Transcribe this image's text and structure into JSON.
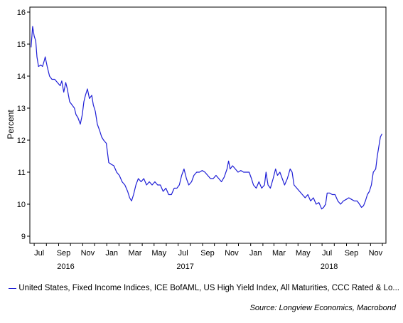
{
  "chart_data": {
    "type": "line",
    "ylabel": "Percent",
    "ylim": [
      9,
      16
    ],
    "yticks": [
      9,
      10,
      11,
      12,
      13,
      14,
      15,
      16
    ],
    "x_tick_labels": [
      "Jul",
      "Sep",
      "Nov",
      "Jan",
      "Mar",
      "May",
      "Jul",
      "Sep",
      "Nov",
      "Jan",
      "Mar",
      "May",
      "Jul",
      "Sep",
      "Nov"
    ],
    "x_year_labels": [
      "2016",
      "2017",
      "2018"
    ],
    "xlim": [
      "2016-06-20",
      "2018-12-10"
    ],
    "grid": false,
    "legend_position": "bottom",
    "series": [
      {
        "name": "United States, Fixed Income Indices, ICE BofAML, US High Yield Index, All Maturities, CCC Rated & Lo...",
        "color": "#1f1fd6",
        "points": [
          [
            "2016-06-23",
            14.9
          ],
          [
            "2016-06-27",
            15.55
          ],
          [
            "2016-07-01",
            15.25
          ],
          [
            "2016-07-05",
            15.1
          ],
          [
            "2016-07-08",
            14.6
          ],
          [
            "2016-07-12",
            14.3
          ],
          [
            "2016-07-18",
            14.35
          ],
          [
            "2016-07-22",
            14.3
          ],
          [
            "2016-07-27",
            14.5
          ],
          [
            "2016-07-29",
            14.6
          ],
          [
            "2016-08-03",
            14.3
          ],
          [
            "2016-08-09",
            14.0
          ],
          [
            "2016-08-15",
            13.9
          ],
          [
            "2016-08-22",
            13.9
          ],
          [
            "2016-08-29",
            13.8
          ],
          [
            "2016-09-05",
            13.7
          ],
          [
            "2016-09-09",
            13.85
          ],
          [
            "2016-09-14",
            13.5
          ],
          [
            "2016-09-19",
            13.8
          ],
          [
            "2016-09-23",
            13.6
          ],
          [
            "2016-09-29",
            13.2
          ],
          [
            "2016-10-05",
            13.1
          ],
          [
            "2016-10-11",
            13.0
          ],
          [
            "2016-10-15",
            12.8
          ],
          [
            "2016-10-20",
            12.7
          ],
          [
            "2016-10-26",
            12.5
          ],
          [
            "2016-10-31",
            12.8
          ],
          [
            "2016-11-04",
            13.2
          ],
          [
            "2016-11-08",
            13.4
          ],
          [
            "2016-11-13",
            13.6
          ],
          [
            "2016-11-18",
            13.3
          ],
          [
            "2016-11-24",
            13.4
          ],
          [
            "2016-11-28",
            13.1
          ],
          [
            "2016-12-03",
            12.9
          ],
          [
            "2016-12-08",
            12.5
          ],
          [
            "2016-12-14",
            12.3
          ],
          [
            "2016-12-19",
            12.1
          ],
          [
            "2016-12-24",
            12.0
          ],
          [
            "2016-12-31",
            11.9
          ],
          [
            "2017-01-03",
            11.6
          ],
          [
            "2017-01-06",
            11.3
          ],
          [
            "2017-01-12",
            11.25
          ],
          [
            "2017-01-19",
            11.2
          ],
          [
            "2017-01-26",
            11.0
          ],
          [
            "2017-02-02",
            10.9
          ],
          [
            "2017-02-09",
            10.7
          ],
          [
            "2017-02-16",
            10.6
          ],
          [
            "2017-02-23",
            10.4
          ],
          [
            "2017-02-28",
            10.2
          ],
          [
            "2017-03-05",
            10.1
          ],
          [
            "2017-03-10",
            10.3
          ],
          [
            "2017-03-16",
            10.6
          ],
          [
            "2017-03-22",
            10.8
          ],
          [
            "2017-03-29",
            10.7
          ],
          [
            "2017-04-05",
            10.8
          ],
          [
            "2017-04-12",
            10.6
          ],
          [
            "2017-04-19",
            10.7
          ],
          [
            "2017-04-26",
            10.6
          ],
          [
            "2017-05-03",
            10.7
          ],
          [
            "2017-05-10",
            10.6
          ],
          [
            "2017-05-17",
            10.6
          ],
          [
            "2017-05-24",
            10.4
          ],
          [
            "2017-05-31",
            10.5
          ],
          [
            "2017-06-07",
            10.3
          ],
          [
            "2017-06-14",
            10.3
          ],
          [
            "2017-06-21",
            10.5
          ],
          [
            "2017-06-28",
            10.5
          ],
          [
            "2017-07-04",
            10.6
          ],
          [
            "2017-07-10",
            10.9
          ],
          [
            "2017-07-16",
            11.1
          ],
          [
            "2017-07-22",
            10.8
          ],
          [
            "2017-07-28",
            10.6
          ],
          [
            "2017-08-04",
            10.7
          ],
          [
            "2017-08-10",
            10.9
          ],
          [
            "2017-08-17",
            11.0
          ],
          [
            "2017-08-24",
            11.0
          ],
          [
            "2017-08-31",
            11.05
          ],
          [
            "2017-09-07",
            11.0
          ],
          [
            "2017-09-14",
            10.9
          ],
          [
            "2017-09-21",
            10.8
          ],
          [
            "2017-09-28",
            10.8
          ],
          [
            "2017-10-05",
            10.9
          ],
          [
            "2017-10-12",
            10.8
          ],
          [
            "2017-10-19",
            10.7
          ],
          [
            "2017-10-26",
            10.85
          ],
          [
            "2017-11-02",
            11.1
          ],
          [
            "2017-11-06",
            11.35
          ],
          [
            "2017-11-10",
            11.1
          ],
          [
            "2017-11-16",
            11.2
          ],
          [
            "2017-11-23",
            11.1
          ],
          [
            "2017-11-30",
            11.0
          ],
          [
            "2017-12-07",
            11.05
          ],
          [
            "2017-12-14",
            11.0
          ],
          [
            "2017-12-21",
            11.0
          ],
          [
            "2017-12-28",
            11.0
          ],
          [
            "2018-01-03",
            10.8
          ],
          [
            "2018-01-08",
            10.6
          ],
          [
            "2018-01-15",
            10.5
          ],
          [
            "2018-01-22",
            10.7
          ],
          [
            "2018-01-29",
            10.5
          ],
          [
            "2018-02-05",
            10.6
          ],
          [
            "2018-02-09",
            11.0
          ],
          [
            "2018-02-14",
            10.6
          ],
          [
            "2018-02-20",
            10.5
          ],
          [
            "2018-02-27",
            10.8
          ],
          [
            "2018-03-05",
            11.1
          ],
          [
            "2018-03-10",
            10.9
          ],
          [
            "2018-03-16",
            11.0
          ],
          [
            "2018-03-22",
            10.8
          ],
          [
            "2018-03-28",
            10.6
          ],
          [
            "2018-04-04",
            10.8
          ],
          [
            "2018-04-11",
            11.1
          ],
          [
            "2018-04-16",
            11.0
          ],
          [
            "2018-04-21",
            10.6
          ],
          [
            "2018-04-28",
            10.5
          ],
          [
            "2018-05-05",
            10.4
          ],
          [
            "2018-05-12",
            10.3
          ],
          [
            "2018-05-19",
            10.2
          ],
          [
            "2018-05-26",
            10.3
          ],
          [
            "2018-06-02",
            10.1
          ],
          [
            "2018-06-09",
            10.2
          ],
          [
            "2018-06-16",
            10.0
          ],
          [
            "2018-06-23",
            10.05
          ],
          [
            "2018-06-30",
            9.85
          ],
          [
            "2018-07-05",
            9.9
          ],
          [
            "2018-07-10",
            10.0
          ],
          [
            "2018-07-14",
            10.35
          ],
          [
            "2018-07-20",
            10.35
          ],
          [
            "2018-07-27",
            10.3
          ],
          [
            "2018-08-03",
            10.3
          ],
          [
            "2018-08-10",
            10.1
          ],
          [
            "2018-08-17",
            10.0
          ],
          [
            "2018-08-24",
            10.1
          ],
          [
            "2018-08-31",
            10.15
          ],
          [
            "2018-09-07",
            10.2
          ],
          [
            "2018-09-14",
            10.15
          ],
          [
            "2018-09-21",
            10.1
          ],
          [
            "2018-09-28",
            10.1
          ],
          [
            "2018-10-04",
            10.0
          ],
          [
            "2018-10-09",
            9.9
          ],
          [
            "2018-10-14",
            9.95
          ],
          [
            "2018-10-19",
            10.1
          ],
          [
            "2018-10-24",
            10.3
          ],
          [
            "2018-10-29",
            10.4
          ],
          [
            "2018-11-03",
            10.6
          ],
          [
            "2018-11-08",
            11.0
          ],
          [
            "2018-11-14",
            11.1
          ],
          [
            "2018-11-18",
            11.5
          ],
          [
            "2018-11-22",
            11.8
          ],
          [
            "2018-11-26",
            12.1
          ],
          [
            "2018-11-30",
            12.2
          ]
        ]
      }
    ]
  },
  "source": "Source: Longview Economics, Macrobond"
}
